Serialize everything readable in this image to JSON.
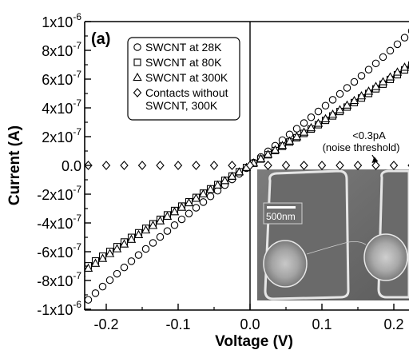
{
  "chart_data": {
    "type": "scatter",
    "panel_label": "(a)",
    "xlabel": "Voltage (V)",
    "ylabel": "Current (A)",
    "xlim": [
      -0.27,
      0.25
    ],
    "ylim": [
      -1e-06,
      1e-06
    ],
    "x_ticks": [
      -0.2,
      -0.1,
      0.0,
      0.1,
      0.2
    ],
    "x_tick_labels": [
      "-0.2",
      "-0.1",
      "0.0",
      "0.1",
      "0.2"
    ],
    "y_ticks": [
      1e-06,
      8e-07,
      6e-07,
      4e-07,
      2e-07,
      0,
      -2e-07,
      -4e-07,
      -6e-07,
      -8e-07,
      -1e-06
    ],
    "y_tick_labels": [
      {
        "mant": "1x10",
        "exp": "-6"
      },
      {
        "mant": "8x10",
        "exp": "-7"
      },
      {
        "mant": "6x10",
        "exp": "-7"
      },
      {
        "mant": "4x10",
        "exp": "-7"
      },
      {
        "mant": "2x10",
        "exp": "-7"
      },
      {
        "mant": "0.0",
        "exp": ""
      },
      {
        "mant": "-2x10",
        "exp": "-7"
      },
      {
        "mant": "-4x10",
        "exp": "-7"
      },
      {
        "mant": "-6x10",
        "exp": "-7"
      },
      {
        "mant": "-8x10",
        "exp": "-7"
      },
      {
        "mant": "-1x10",
        "exp": "-6"
      }
    ],
    "legend_position": "top-left",
    "legend": [
      {
        "marker": "circle",
        "lines": [
          "SWCNT at 28K"
        ]
      },
      {
        "marker": "square",
        "lines": [
          "SWCNT at 80K"
        ]
      },
      {
        "marker": "triangle",
        "lines": [
          "SWCNT at 300K"
        ]
      },
      {
        "marker": "diamond",
        "lines": [
          "Contacts without",
          "SWCNT, 300K"
        ]
      }
    ],
    "annotation": {
      "lines": [
        "<0.3pA",
        "(noise threshold)"
      ],
      "arrow_to": [
        0.165,
        0
      ]
    },
    "inset": {
      "type": "SEM micrograph",
      "scale_bar": "500nm"
    },
    "series": [
      {
        "name": "SWCNT at 28K",
        "marker": "circle",
        "x_start": -0.245,
        "x_end": 0.245,
        "x_step": 0.01,
        "fit": {
          "slope": 3.9e-06,
          "cubic": 5e-06
        }
      },
      {
        "name": "SWCNT at 80K",
        "marker": "square",
        "x_start": -0.265,
        "x_end": 0.25,
        "x_step": 0.01,
        "fit": {
          "slope": 2.95e-06,
          "cubic": 3e-06
        }
      },
      {
        "name": "SWCNT at 300K",
        "marker": "triangle",
        "x_start": -0.265,
        "x_end": 0.25,
        "x_step": 0.01,
        "fit": {
          "slope": 3.05e-06,
          "cubic": 2.6e-06
        }
      },
      {
        "name": "Contacts without SWCNT, 300K",
        "marker": "diamond",
        "x_start": -0.25,
        "x_end": 0.25,
        "x_step": 0.025,
        "fit": {
          "slope": 0,
          "cubic": 0
        }
      }
    ]
  }
}
